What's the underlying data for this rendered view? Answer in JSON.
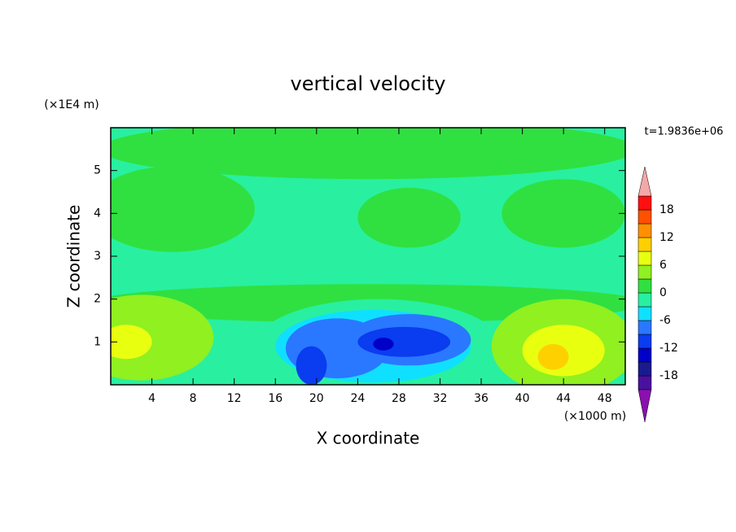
{
  "chart_data": {
    "type": "contour",
    "title": "vertical velocity",
    "x_label": "X coordinate",
    "y_label": "Z coordinate",
    "x_unit": "(×1000 m)",
    "y_unit": "(×1E4 m)",
    "annotation": "t=1.9836e+06",
    "xlim": [
      0,
      50
    ],
    "ylim": [
      0,
      6
    ],
    "xticks": [
      4,
      8,
      12,
      16,
      20,
      24,
      28,
      32,
      36,
      40,
      44,
      48
    ],
    "yticks": [
      1,
      2,
      3,
      4,
      5
    ],
    "levels": [
      -21,
      -18,
      -15,
      -12,
      -9,
      -6,
      -3,
      0,
      3,
      6,
      9,
      12,
      15,
      18,
      21
    ],
    "colors": [
      "#8a10b0",
      "#4a10a0",
      "#1a1a90",
      "#0000c8",
      "#0a3cf0",
      "#2a78ff",
      "#10e0ff",
      "#28f0a0",
      "#30e040",
      "#90f020",
      "#e8ff10",
      "#ffd000",
      "#ff9000",
      "#ff5000",
      "#ff1010",
      "#f4a8a8"
    ],
    "colorbar_ticks": [
      -18,
      -12,
      -6,
      0,
      6,
      12,
      18
    ],
    "background_value": -1.5,
    "regions": [
      {
        "value": 1.5,
        "x": 25,
        "y": 5.5,
        "rx": 26,
        "ry": 0.7
      },
      {
        "value": 1.5,
        "x": 6,
        "y": 4.1,
        "rx": 8,
        "ry": 1.0
      },
      {
        "value": 1.5,
        "x": 29,
        "y": 3.9,
        "rx": 5,
        "ry": 0.7
      },
      {
        "value": 1.5,
        "x": 44,
        "y": 4.0,
        "rx": 6,
        "ry": 0.8
      },
      {
        "value": 1.5,
        "x": 25,
        "y": 1.9,
        "rx": 27,
        "ry": 0.45
      },
      {
        "value": 4.5,
        "x": 3,
        "y": 1.1,
        "rx": 7,
        "ry": 1.0
      },
      {
        "value": 7.5,
        "x": 1.5,
        "y": 1.0,
        "rx": 2.5,
        "ry": 0.4
      },
      {
        "value": -1.5,
        "x": 26,
        "y": 0.9,
        "rx": 12,
        "ry": 1.1
      },
      {
        "value": -4.5,
        "x": 25.5,
        "y": 0.9,
        "rx": 9.5,
        "ry": 0.85
      },
      {
        "value": -7.5,
        "x": 22,
        "y": 0.85,
        "rx": 5,
        "ry": 0.7
      },
      {
        "value": -7.5,
        "x": 29,
        "y": 1.05,
        "rx": 6,
        "ry": 0.6
      },
      {
        "value": -10.5,
        "x": 19.5,
        "y": 0.45,
        "rx": 1.5,
        "ry": 0.45
      },
      {
        "value": -10.5,
        "x": 28.5,
        "y": 1.0,
        "rx": 4.5,
        "ry": 0.35
      },
      {
        "value": -13.5,
        "x": 26.5,
        "y": 0.95,
        "rx": 1,
        "ry": 0.15
      },
      {
        "value": 4.5,
        "x": 44,
        "y": 0.9,
        "rx": 7,
        "ry": 1.1
      },
      {
        "value": 7.5,
        "x": 44,
        "y": 0.8,
        "rx": 4,
        "ry": 0.6
      },
      {
        "value": 10.5,
        "x": 43,
        "y": 0.65,
        "rx": 1.5,
        "ry": 0.3
      }
    ]
  }
}
